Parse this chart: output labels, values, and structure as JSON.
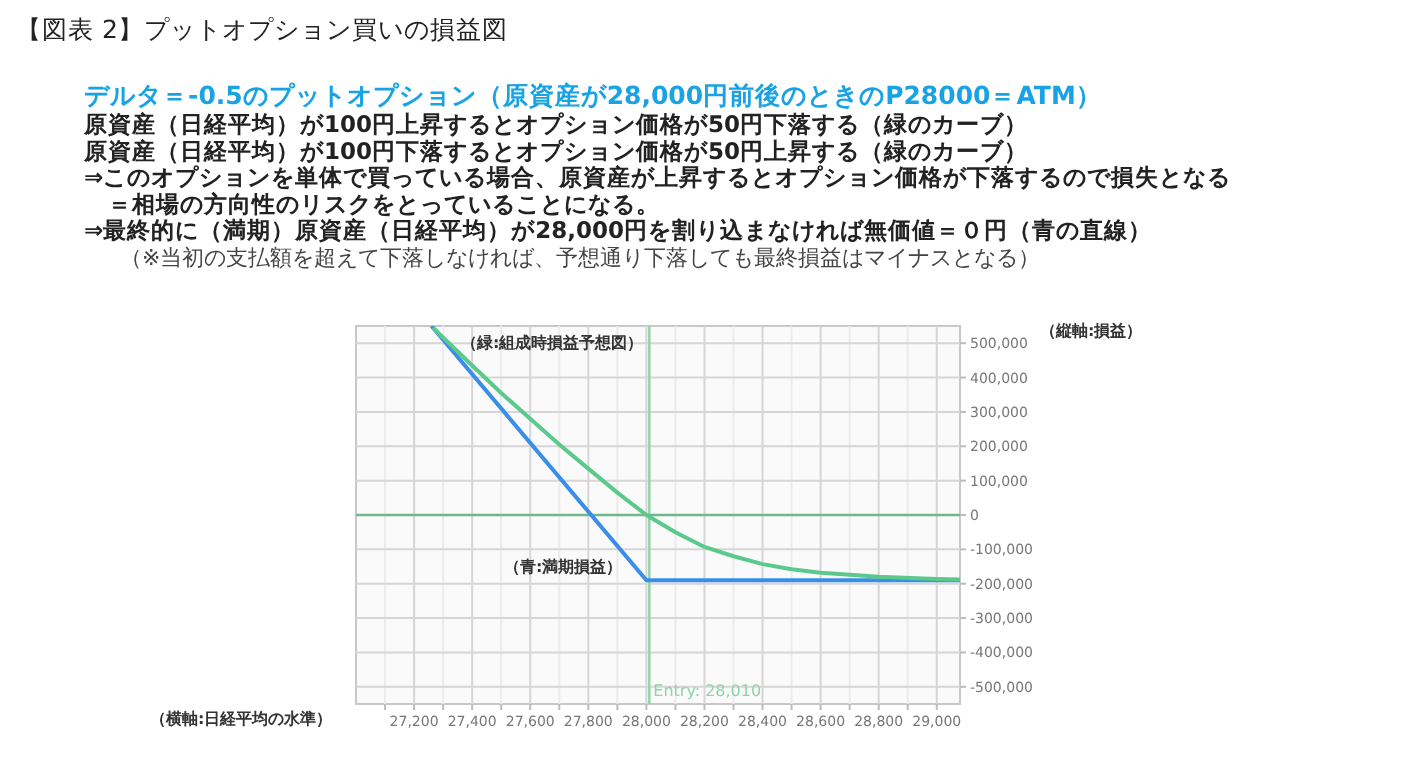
{
  "chart_data": {
    "type": "line",
    "title": "【図表 2】プットオプション買いの損益図",
    "subtitle": "デルタ＝-0.5のプットオプション（原資産が28,000円前後のときのP28000＝ATM）",
    "annotations": [
      "原資産（日経平均）が100円上昇するとオプション価格が50円下落する（緑のカーブ）",
      "原資産（日経平均）が100円下落するとオプション価格が50円上昇する（緑のカーブ）",
      "⇒このオプションを単体で買っている場合、原資産が上昇するとオプション価格が下落するので損失となる",
      "　＝相場の方向性のリスクをとっていることになる。",
      "⇒最終的に（満期）原資産（日経平均）が28,000円を割り込まなければ無価値＝０円（青の直線）",
      "（※当初の支払額を超えて下落しなければ、予想通り下落しても最終損益はマイナスとなる）"
    ],
    "xlabel": "（横軸:日経平均の水準）",
    "ylabel": "（縦軸:損益）",
    "xlim": [
      27000,
      29080
    ],
    "ylim": [
      -550000,
      550000
    ],
    "xticks": [
      {
        "value": 27100,
        "label": null
      },
      {
        "value": 27200,
        "label": "27,200"
      },
      {
        "value": 27300,
        "label": null
      },
      {
        "value": 27400,
        "label": "27,400"
      },
      {
        "value": 27500,
        "label": null
      },
      {
        "value": 27600,
        "label": "27,600"
      },
      {
        "value": 27700,
        "label": null
      },
      {
        "value": 27800,
        "label": "27,800"
      },
      {
        "value": 27900,
        "label": null
      },
      {
        "value": 28000,
        "label": "28,000"
      },
      {
        "value": 28100,
        "label": null
      },
      {
        "value": 28200,
        "label": "28,200"
      },
      {
        "value": 28300,
        "label": null
      },
      {
        "value": 28400,
        "label": "28,400"
      },
      {
        "value": 28500,
        "label": null
      },
      {
        "value": 28600,
        "label": "28,600"
      },
      {
        "value": 28700,
        "label": null
      },
      {
        "value": 28800,
        "label": "28,800"
      },
      {
        "value": 28900,
        "label": null
      },
      {
        "value": 29000,
        "label": "29,000"
      }
    ],
    "yticks": [
      {
        "value": -500000,
        "label": "-500,000"
      },
      {
        "value": -400000,
        "label": "-400,000"
      },
      {
        "value": -300000,
        "label": "-300,000"
      },
      {
        "value": -200000,
        "label": "-200,000"
      },
      {
        "value": -100000,
        "label": "-100,000"
      },
      0,
      {
        "value": 100000,
        "label": "100,000"
      },
      {
        "value": 200000,
        "label": "200,000"
      },
      {
        "value": 300000,
        "label": "300,000"
      },
      {
        "value": 400000,
        "label": "400,000"
      },
      {
        "value": 500000,
        "label": "500,000"
      }
    ],
    "grid": true,
    "legend": false,
    "marker": "none",
    "line_style": "solid",
    "ref_lines": [
      {
        "axis": "x",
        "value": 28010,
        "label": "Entry: 28,010",
        "color": "#8fd3a6"
      },
      {
        "axis": "y",
        "value": 0,
        "color": "#6fb88a"
      }
    ],
    "series": [
      {
        "name": "（青:満期損益）",
        "color": "#3b8ee8",
        "x": [
          27260,
          28000,
          29080
        ],
        "values": [
          550000,
          -190000,
          -190000
        ]
      },
      {
        "name": "（緑:組成時損益予想図）",
        "color": "#5cc98c",
        "x": [
          27265,
          27400,
          27500,
          27600,
          27700,
          27800,
          27900,
          28000,
          28100,
          28200,
          28300,
          28400,
          28500,
          28600,
          28800,
          29000,
          29080
        ],
        "values": [
          545000,
          435000,
          355000,
          280000,
          205000,
          135000,
          65000,
          0,
          -50000,
          -93000,
          -120000,
          -143000,
          -158000,
          -168000,
          -180000,
          -186000,
          -188000
        ]
      }
    ]
  }
}
